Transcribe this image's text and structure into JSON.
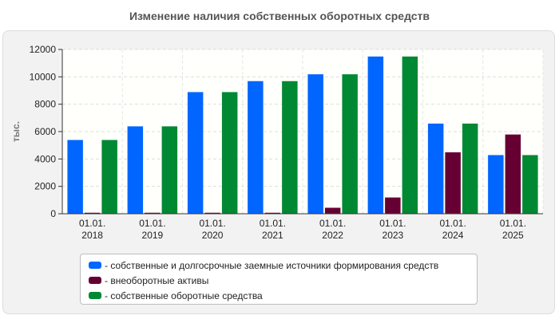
{
  "page_title": "Изменение наличия собственных оборотных средств",
  "colors": {
    "series_1": "#0066ff",
    "series_2": "#660033",
    "series_3": "#008833",
    "plot_background": "#fffffb",
    "panel_background": "#f2f2f2"
  },
  "chart_data": {
    "type": "bar",
    "title": "Изменение наличия собственных оборотных средств",
    "xlabel": "",
    "ylabel": "тыс.",
    "ylim": [
      0,
      12000
    ],
    "yticks": [
      "0",
      "2000",
      "4000",
      "6000",
      "8000",
      "10000",
      "12000"
    ],
    "grid": true,
    "legend_position": "bottom",
    "categories": [
      [
        "01.01.",
        "2018"
      ],
      [
        "01.01.",
        "2019"
      ],
      [
        "01.01.",
        "2020"
      ],
      [
        "01.01.",
        "2021"
      ],
      [
        "01.01.",
        "2022"
      ],
      [
        "01.01.",
        "2023"
      ],
      [
        "01.01.",
        "2024"
      ],
      [
        "01.01.",
        "2025"
      ]
    ],
    "series": [
      {
        "name": "- собственные и долгосрочные заемные источники формирования средств",
        "color": "#0066ff",
        "values": [
          5400,
          6400,
          8900,
          9700,
          10200,
          11500,
          6600,
          4300
        ]
      },
      {
        "name": "- внеоборотные активы",
        "color": "#660033",
        "values": [
          50,
          50,
          50,
          50,
          450,
          1200,
          4500,
          5800
        ]
      },
      {
        "name": "- собственные оборотные средства",
        "color": "#008833",
        "values": [
          5400,
          6400,
          8900,
          9700,
          10200,
          11500,
          6600,
          4300
        ]
      }
    ]
  }
}
